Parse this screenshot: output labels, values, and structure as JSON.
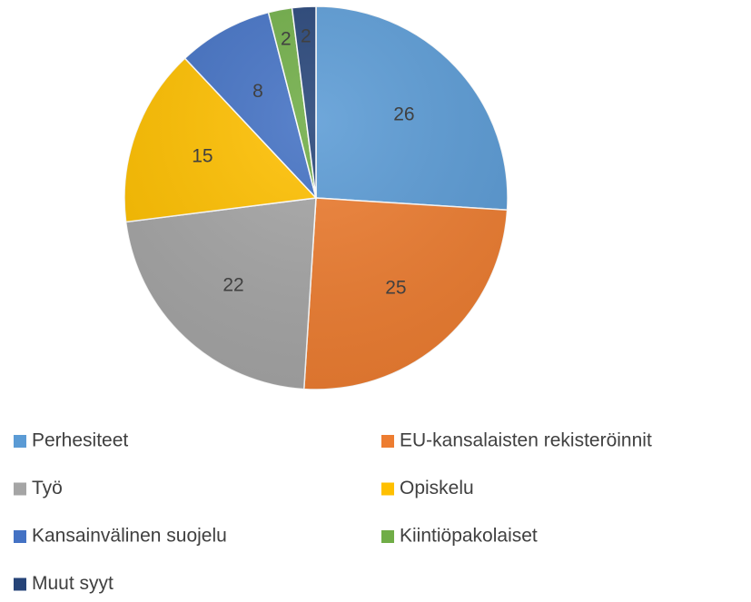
{
  "chart_data": {
    "type": "pie",
    "categories": [
      "Perhesiteet",
      "EU-kansalaisten rekisteröinnit",
      "Työ",
      "Opiskelu",
      "Kansainvälinen suojelu",
      "Kiintiöpakolaiset",
      "Muut syyt"
    ],
    "values": [
      26,
      25,
      22,
      15,
      8,
      2,
      2
    ],
    "colors": [
      "#5b9bd5",
      "#ed7d31",
      "#a5a5a5",
      "#ffc000",
      "#4472c4",
      "#70ad47",
      "#264478"
    ],
    "legend": "bottom"
  }
}
